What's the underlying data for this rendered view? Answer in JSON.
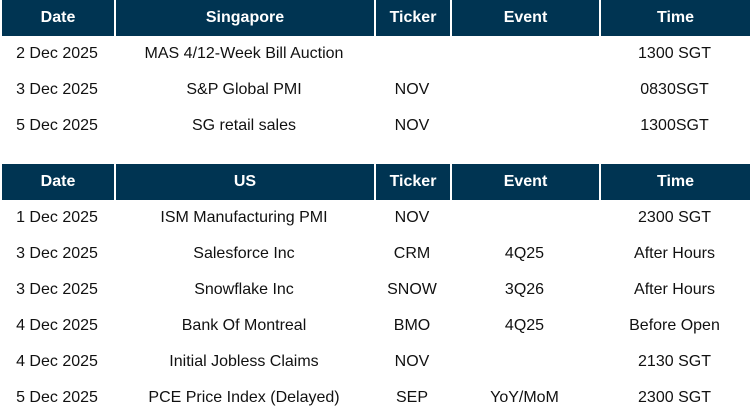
{
  "singapore": {
    "headers": [
      "Date",
      "Singapore",
      "Ticker",
      "Event",
      "Time"
    ],
    "rows": [
      {
        "date": "2 Dec 2025",
        "name": "MAS 4/12-Week Bill Auction",
        "ticker": "",
        "event": "",
        "time": "1300 SGT"
      },
      {
        "date": "3 Dec 2025",
        "name": "S&P Global PMI",
        "ticker": "NOV",
        "event": "",
        "time": "0830SGT"
      },
      {
        "date": "5 Dec 2025",
        "name": "SG retail sales",
        "ticker": "NOV",
        "event": "",
        "time": "1300SGT"
      }
    ]
  },
  "us": {
    "headers": [
      "Date",
      "US",
      "Ticker",
      "Event",
      "Time"
    ],
    "rows": [
      {
        "date": "1 Dec 2025",
        "name": "ISM Manufacturing PMI",
        "ticker": "NOV",
        "event": "",
        "time": "2300 SGT"
      },
      {
        "date": "3 Dec 2025",
        "name": "Salesforce Inc",
        "ticker": "CRM",
        "event": "4Q25",
        "time": "After Hours"
      },
      {
        "date": "3 Dec 2025",
        "name": "Snowflake Inc",
        "ticker": "SNOW",
        "event": "3Q26",
        "time": "After Hours"
      },
      {
        "date": "4 Dec 2025",
        "name": "Bank Of Montreal",
        "ticker": "BMO",
        "event": "4Q25",
        "time": "Before Open"
      },
      {
        "date": "4 Dec 2025",
        "name": "Initial Jobless Claims",
        "ticker": "NOV",
        "event": "",
        "time": "2130 SGT"
      },
      {
        "date": "5 Dec 2025",
        "name": "PCE Price Index (Delayed)",
        "ticker": "SEP",
        "event": "YoY/MoM",
        "time": "2300 SGT"
      }
    ]
  },
  "colors": {
    "header_bg": "#003452",
    "header_text": "#ffffff"
  }
}
